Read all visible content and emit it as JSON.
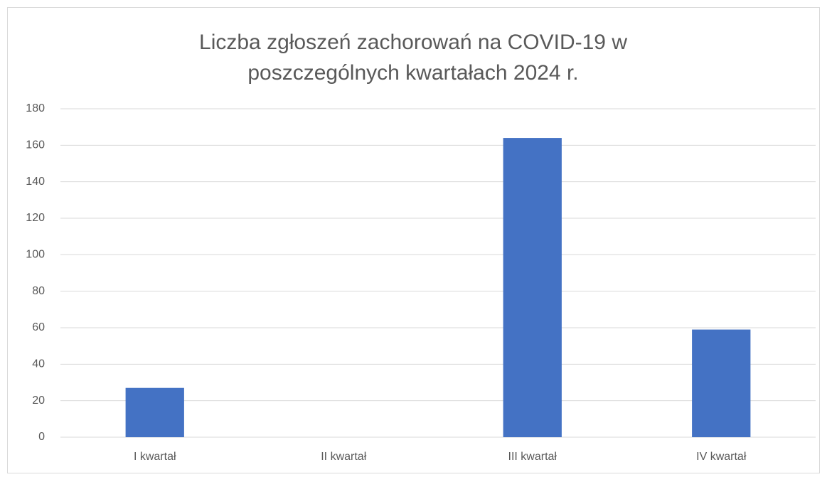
{
  "chart_data": {
    "type": "bar",
    "title": "Liczba zgłoszeń zachorowań na COVID-19 w poszczególnych kwartałach 2024 r.",
    "categories": [
      "I kwartał",
      "II kwartał",
      "III kwartał",
      "IV kwartał"
    ],
    "values": [
      27,
      0,
      164,
      59
    ],
    "color": "#4472c4",
    "ylim": [
      0,
      180
    ],
    "yticks": [
      0,
      20,
      40,
      60,
      80,
      100,
      120,
      140,
      160,
      180
    ],
    "grid": true
  }
}
